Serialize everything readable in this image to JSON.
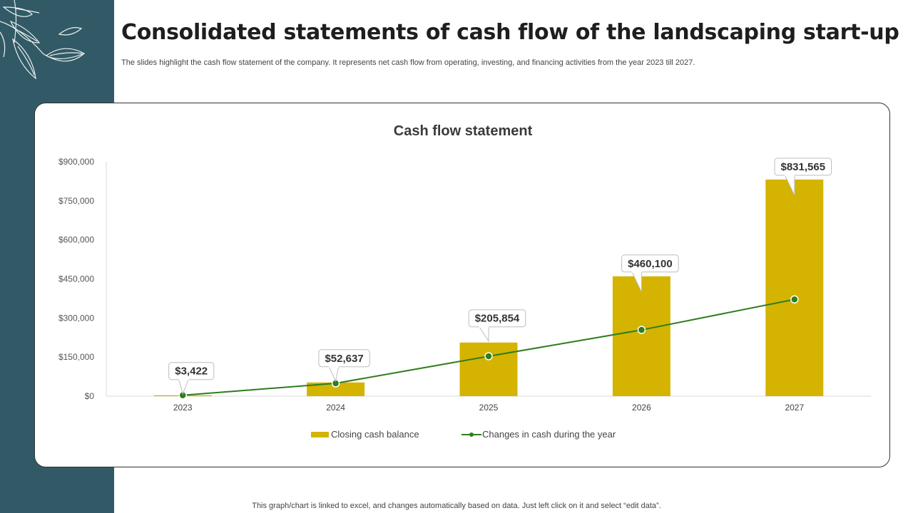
{
  "header": {
    "title": "Consolidated statements of cash flow of the landscaping start-up",
    "subtitle": "The slides highlight the cash flow statement of the company. It represents net cash flow from operating, investing, and financing activities from the year 2023 till 2027."
  },
  "footer": {
    "note": "This graph/chart is linked to excel, and changes automatically based on data. Just left click on it and select “edit data”."
  },
  "colors": {
    "sidebar": "#315a66",
    "bar": "#d4b400",
    "line": "#2e7d1e"
  },
  "chart_data": {
    "type": "bar",
    "title": "Cash flow statement",
    "categories": [
      "2023",
      "2024",
      "2025",
      "2026",
      "2027"
    ],
    "ylim": [
      0,
      900000
    ],
    "yticks": [
      0,
      150000,
      300000,
      450000,
      600000,
      750000,
      900000
    ],
    "ytick_labels": [
      "$0",
      "$150,000",
      "$300,000",
      "$450,000",
      "$600,000",
      "$750,000",
      "$900,000"
    ],
    "grid": false,
    "legend_position": "bottom",
    "series": [
      {
        "name": "Closing cash balance",
        "type": "bar",
        "values": [
          3422,
          52637,
          205854,
          460100,
          831565
        ],
        "data_labels": [
          "$3,422",
          "$52,637",
          "$205,854",
          "$460,100",
          "$831,565"
        ]
      },
      {
        "name": "Changes in cash during the year",
        "type": "line",
        "values": [
          3422,
          49215,
          153217,
          254246,
          371465
        ]
      }
    ]
  }
}
